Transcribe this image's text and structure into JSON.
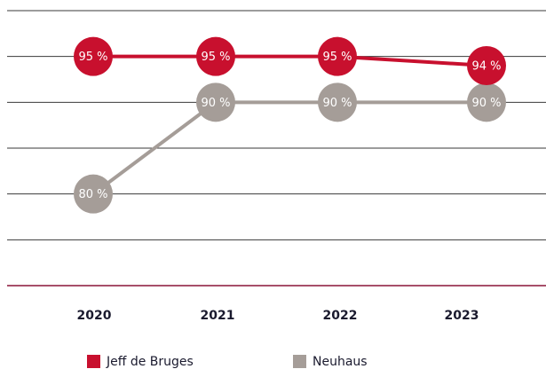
{
  "chart_data": {
    "type": "line",
    "categories": [
      "2020",
      "2021",
      "2022",
      "2023"
    ],
    "series": [
      {
        "name": "Jeff de Bruges",
        "color": "#c8102e",
        "values": [
          95,
          95,
          95,
          94
        ],
        "value_labels": [
          "95 %",
          "95 %",
          "95 %",
          "94 %"
        ]
      },
      {
        "name": "Neuhaus",
        "color": "#a59d98",
        "values": [
          80,
          90,
          90,
          90
        ],
        "value_labels": [
          "80 %",
          "90 %",
          "90 %",
          "90 %"
        ]
      }
    ],
    "ylim": [
      70,
      100
    ],
    "yticks": [
      70,
      75,
      80,
      85,
      90,
      95,
      100
    ],
    "grid": true,
    "baseline_color": "#8a1538"
  }
}
